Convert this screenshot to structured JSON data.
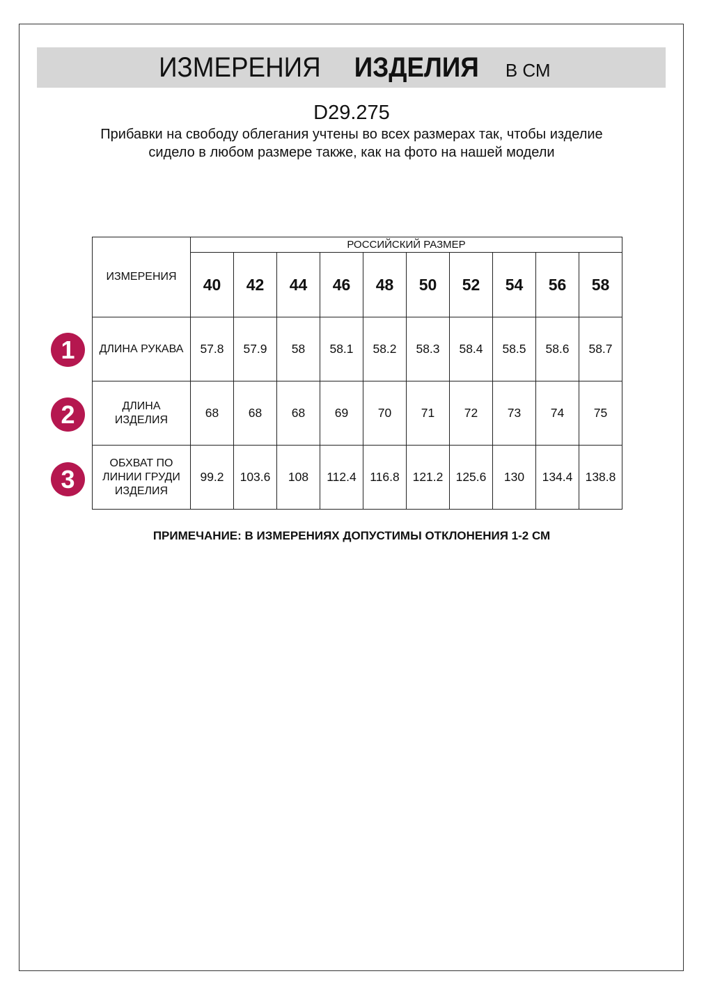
{
  "header": {
    "title_regular": "ИЗМЕРЕНИЯ",
    "title_bold": "ИЗДЕЛИЯ",
    "unit": "В СМ"
  },
  "product_code": "D29.275",
  "description": "Прибавки на свободу облегания учтены во всех размерах так, чтобы изделие сидело в любом размере также, как на фото на нашей модели",
  "table": {
    "measure_header": "ИЗМЕРЕНИЯ",
    "size_header": "РОССИЙСКИЙ РАЗМЕР",
    "sizes": [
      "40",
      "42",
      "44",
      "46",
      "48",
      "50",
      "52",
      "54",
      "56",
      "58"
    ],
    "rows": [
      {
        "number": "1",
        "label": "ДЛИНА РУКАВА",
        "values": [
          "57.8",
          "57.9",
          "58",
          "58.1",
          "58.2",
          "58.3",
          "58.4",
          "58.5",
          "58.6",
          "58.7"
        ]
      },
      {
        "number": "2",
        "label": "ДЛИНА ИЗДЕЛИЯ",
        "values": [
          "68",
          "68",
          "68",
          "69",
          "70",
          "71",
          "72",
          "73",
          "74",
          "75"
        ]
      },
      {
        "number": "3",
        "label": "ОБХВАТ ПО ЛИНИИ ГРУДИ ИЗДЕЛИЯ",
        "values": [
          "99.2",
          "103.6",
          "108",
          "112.4",
          "116.8",
          "121.2",
          "125.6",
          "130",
          "134.4",
          "138.8"
        ]
      }
    ]
  },
  "note": "ПРИМЕЧАНИЕ: В ИЗМЕРЕНИЯХ ДОПУСТИМЫ ОТКЛОНЕНИЯ 1-2 СМ",
  "colors": {
    "badge": "#b5174f",
    "band": "#d6d6d6"
  }
}
